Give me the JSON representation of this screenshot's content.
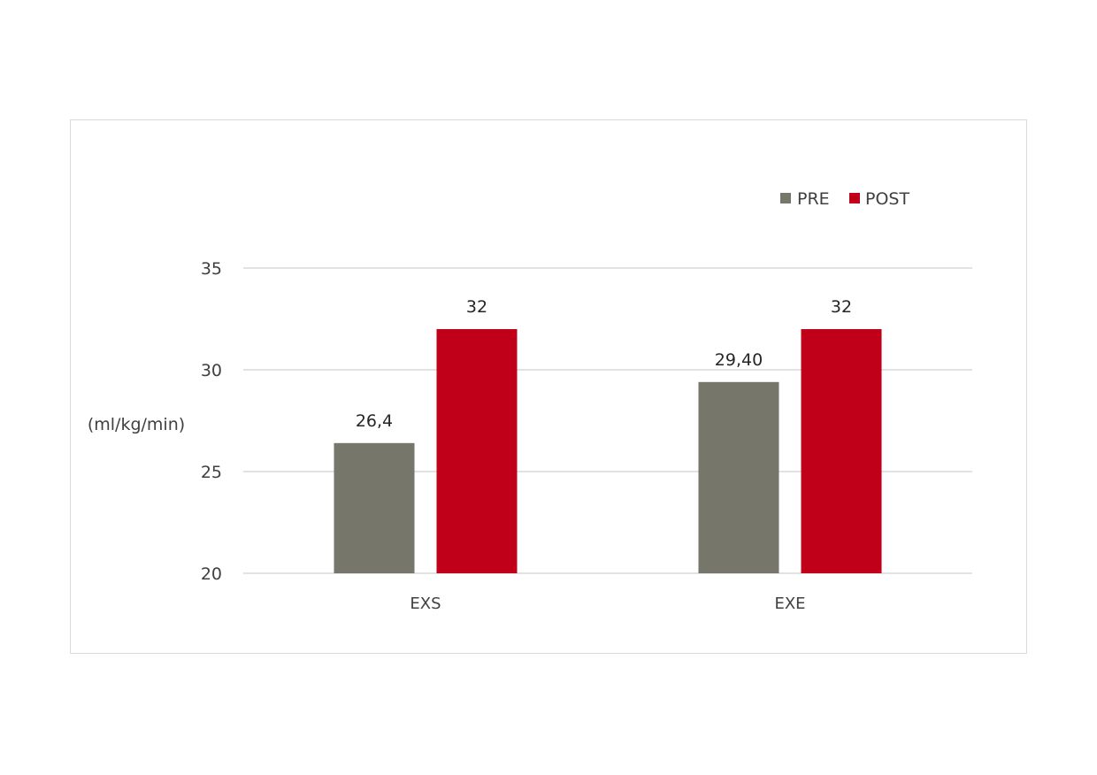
{
  "chart_data": {
    "type": "bar",
    "categories": [
      "EXS",
      "EXE"
    ],
    "series": [
      {
        "name": "PRE",
        "values": [
          26.4,
          29.4
        ],
        "labels": [
          "26,4",
          "29,40"
        ],
        "color": "#76766A"
      },
      {
        "name": "POST",
        "values": [
          32,
          32
        ],
        "labels": [
          "32",
          "32"
        ],
        "color": "#C00018"
      }
    ],
    "title": "",
    "xlabel": "",
    "ylabel": "(ml/kg/min)",
    "ylim": [
      20,
      35
    ],
    "yticks": [
      20,
      25,
      30,
      35
    ],
    "ytick_labels": [
      "20",
      "25",
      "30",
      "35"
    ],
    "grid": true,
    "legend_position": "top-right"
  },
  "colors": {
    "grid": "#d9d9d9",
    "frame": "#d9d9d9",
    "text": "#404040"
  }
}
